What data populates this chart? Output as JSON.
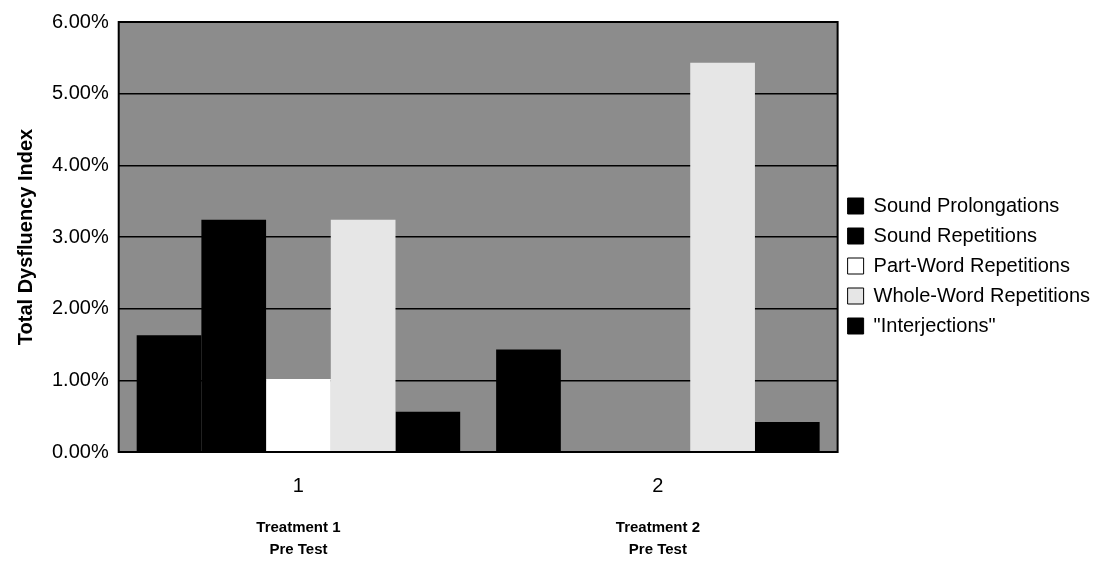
{
  "chart_data": {
    "type": "bar",
    "ylabel": "Total Dysfluency Index",
    "categories": [
      "1",
      "2"
    ],
    "series": [
      {
        "name": "Sound Prolongations",
        "color": "#000000",
        "values": [
          1.63,
          1.43
        ]
      },
      {
        "name": "Sound Repetitions",
        "color": "#000000",
        "values": [
          3.24,
          0
        ]
      },
      {
        "name": "Part-Word Repetitions",
        "color": "#ffffff",
        "values": [
          1.02,
          0
        ]
      },
      {
        "name": "Whole-Word Repetitions",
        "color": "#e6e6e6",
        "values": [
          3.24,
          5.43
        ]
      },
      {
        "name": "\"Interjections\"",
        "color": "#000000",
        "values": [
          0.56,
          0.42
        ]
      }
    ],
    "ylim": [
      0,
      6
    ],
    "yticks": [
      {
        "value": 0,
        "label": "0.00%"
      },
      {
        "value": 1,
        "label": "1.00%"
      },
      {
        "value": 2,
        "label": "2.00%"
      },
      {
        "value": 3,
        "label": "3.00%"
      },
      {
        "value": 4,
        "label": "4.00%"
      },
      {
        "value": 5,
        "label": "5.00%"
      },
      {
        "value": 6,
        "label": "6.00%"
      }
    ],
    "grid": "y",
    "legend": "right",
    "annotations": [
      "Treatment 1\nPre Test",
      "Treatment 2\nPre Test"
    ]
  }
}
